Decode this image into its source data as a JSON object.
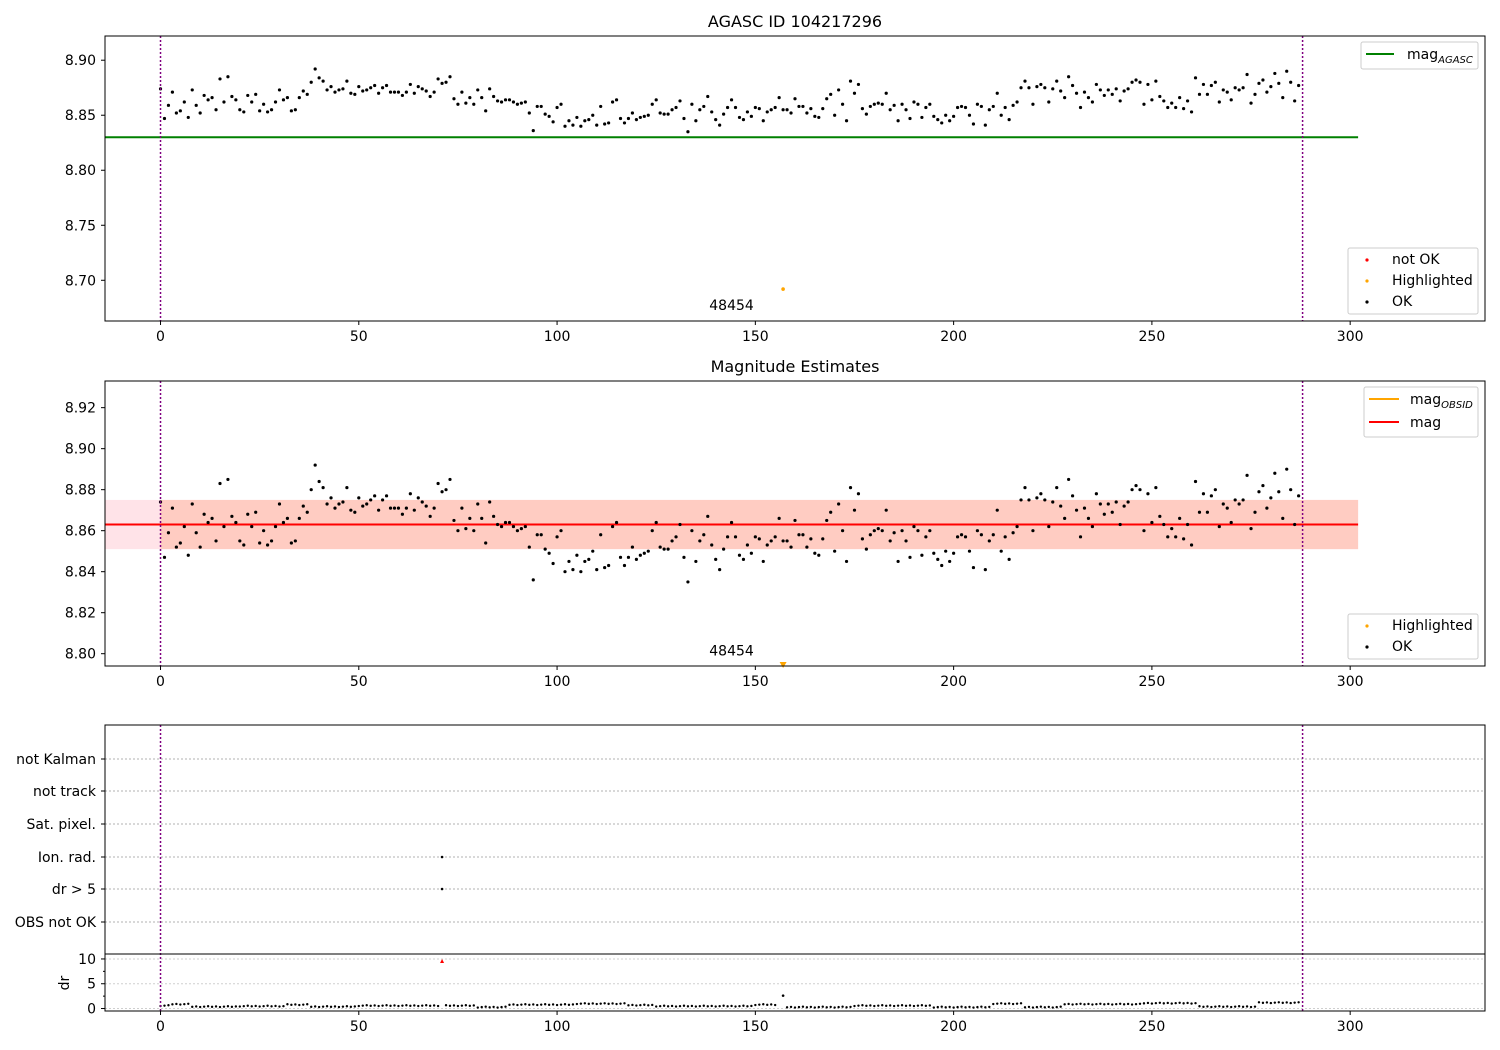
{
  "chart_data": [
    {
      "type": "scatter",
      "title": "AGASC ID 104217296",
      "xlim": [
        -14,
        334
      ],
      "ylim": [
        8.663,
        8.922
      ],
      "yticks": [
        8.7,
        8.75,
        8.8,
        8.85,
        8.9
      ],
      "ytick_labels": [
        "8.70",
        "8.75",
        "8.80",
        "8.85",
        "8.90"
      ],
      "xticks": [
        0,
        50,
        100,
        150,
        200,
        250,
        300
      ],
      "xtick_labels": [
        "0",
        "50",
        "100",
        "150",
        "200",
        "250",
        "300"
      ],
      "grid": false,
      "vlines": [
        0,
        288
      ],
      "hlines": [
        {
          "name": "mag_AGASC",
          "y": 8.83,
          "x0": -14,
          "x1": 302,
          "color": "#008000"
        }
      ],
      "legend_top": {
        "placement": "top-right",
        "entries": [
          {
            "label_main": "mag",
            "label_sub": "AGASC",
            "color": "#008000",
            "kind": "line"
          }
        ]
      },
      "legend_bottom": {
        "placement": "bottom-right",
        "entries": [
          {
            "label": "not OK",
            "color": "#ff0000",
            "kind": "dot"
          },
          {
            "label": "Highlighted",
            "color": "#ffa500",
            "kind": "dot"
          },
          {
            "label": "OK",
            "color": "#000000",
            "kind": "dot"
          }
        ]
      },
      "highlighted_points": [
        {
          "x": 157,
          "y": 8.692
        }
      ],
      "annotations": [
        {
          "text": "48454",
          "x": 144,
          "y": 8.673
        }
      ],
      "series": [
        {
          "name": "OK",
          "color": "#000000",
          "x_start": 0,
          "x_step": 1,
          "values": [
            8.874,
            8.847,
            8.859,
            8.871,
            8.852,
            8.854,
            8.862,
            8.848,
            8.873,
            8.859,
            8.852,
            8.868,
            8.864,
            8.866,
            8.855,
            8.883,
            8.862,
            8.885,
            8.867,
            8.864,
            8.855,
            8.853,
            8.868,
            8.862,
            8.869,
            8.854,
            8.86,
            8.853,
            8.855,
            8.862,
            8.873,
            8.864,
            8.866,
            8.854,
            8.855,
            8.866,
            8.872,
            8.869,
            8.88,
            8.892,
            8.884,
            8.881,
            8.873,
            8.876,
            8.871,
            8.873,
            8.874,
            8.881,
            8.87,
            8.869,
            8.876,
            8.872,
            8.873,
            8.875,
            8.877,
            8.87,
            8.875,
            8.877,
            8.871,
            8.871,
            8.871,
            8.868,
            8.871,
            8.878,
            8.87,
            8.876,
            8.874,
            8.872,
            8.867,
            8.871,
            8.883,
            8.879,
            8.88,
            8.885,
            8.865,
            8.86,
            8.871,
            8.861,
            8.866,
            8.86,
            8.873,
            8.866,
            8.854,
            8.874,
            8.867,
            8.863,
            8.862,
            8.864,
            8.864,
            8.862,
            8.86,
            8.861,
            8.862,
            8.852,
            8.836,
            8.858,
            8.858,
            8.851,
            8.849,
            8.844,
            8.857,
            8.86,
            8.84,
            8.845,
            8.841,
            8.848,
            8.84,
            8.845,
            8.846,
            8.85,
            8.841,
            8.858,
            8.842,
            8.843,
            8.862,
            8.864,
            8.847,
            8.843,
            8.847,
            8.852,
            8.846,
            8.848,
            8.849,
            8.85,
            8.86,
            8.864,
            8.852,
            8.851,
            8.851,
            8.855,
            8.857,
            8.863,
            8.847,
            8.835,
            8.86,
            8.845,
            8.855,
            8.858,
            8.867,
            8.853,
            8.846,
            8.841,
            8.851,
            8.857,
            8.864,
            8.857,
            8.848,
            8.846,
            8.853,
            8.849,
            8.857,
            8.856,
            8.845,
            8.853,
            8.855,
            8.857,
            8.866,
            8.855,
            8.855,
            8.852,
            8.865,
            8.858,
            8.858,
            8.852,
            8.856,
            8.849,
            8.848,
            8.856,
            8.865,
            8.869,
            8.85,
            8.873,
            8.86,
            8.845,
            8.881,
            8.87,
            8.878,
            8.856,
            8.851,
            8.858,
            8.86,
            8.861,
            8.86,
            8.87,
            8.855,
            8.859,
            8.845,
            8.86,
            8.855,
            8.847,
            8.862,
            8.86,
            8.848,
            8.857,
            8.86,
            8.849,
            8.846,
            8.843,
            8.85,
            8.845,
            8.849,
            8.857,
            8.858,
            8.857,
            8.85,
            8.842,
            8.86,
            8.858,
            8.841,
            8.855,
            8.858,
            8.87,
            8.85,
            8.857,
            8.846,
            8.859,
            8.862,
            8.875,
            8.881,
            8.875,
            8.86,
            8.876,
            8.878,
            8.875,
            8.862,
            8.874,
            8.881,
            8.872,
            8.866,
            8.885,
            8.877,
            8.87,
            8.857,
            8.871,
            8.866,
            8.862,
            8.878,
            8.873,
            8.868,
            8.873,
            8.869,
            8.874,
            8.863,
            8.872,
            8.874,
            8.88,
            8.882,
            8.88,
            8.86,
            8.878,
            8.864,
            8.881,
            8.867,
            8.863,
            8.857,
            8.861,
            8.857,
            8.866,
            8.856,
            8.863,
            8.853,
            8.884,
            8.869,
            8.878,
            8.869,
            8.877,
            8.88,
            8.862,
            8.873,
            8.871,
            8.864,
            8.875,
            8.873,
            8.875,
            8.887,
            8.861,
            8.869,
            8.879,
            8.882,
            8.871,
            8.876,
            8.888,
            8.879,
            8.866,
            8.89,
            8.88,
            8.863,
            8.877
          ]
        }
      ]
    },
    {
      "type": "scatter",
      "title": "Magnitude Estimates",
      "xlim": [
        -14,
        334
      ],
      "ylim": [
        8.794,
        8.933
      ],
      "yticks": [
        8.8,
        8.82,
        8.84,
        8.86,
        8.88,
        8.9,
        8.92
      ],
      "ytick_labels": [
        "8.80",
        "8.82",
        "8.84",
        "8.86",
        "8.88",
        "8.90",
        "8.92"
      ],
      "xticks": [
        0,
        50,
        100,
        150,
        200,
        250,
        300
      ],
      "xtick_labels": [
        "0",
        "50",
        "100",
        "150",
        "200",
        "250",
        "300"
      ],
      "grid": false,
      "vlines": [
        0,
        288
      ],
      "hlines": [
        {
          "name": "mag",
          "y": 8.863,
          "x0": -14,
          "x1": 302,
          "color": "#ff0000"
        }
      ],
      "bands": [
        {
          "name": "mag band",
          "y0": 8.851,
          "y1": 8.875,
          "x0": -14,
          "x1": 302,
          "color": "#ffc0cb"
        },
        {
          "name": "mag_OBSID band",
          "y0": 8.851,
          "y1": 8.875,
          "x0": 0,
          "x1": 302,
          "color": "#ffa07a"
        }
      ],
      "legend_top": {
        "placement": "top-right",
        "entries": [
          {
            "label_main": "mag",
            "label_sub": "OBSID",
            "color": "#ffa500",
            "kind": "line"
          },
          {
            "label_main": "mag",
            "label_sub": "",
            "color": "#ff0000",
            "kind": "line"
          }
        ]
      },
      "legend_bottom": {
        "placement": "bottom-right",
        "entries": [
          {
            "label": "Highlighted",
            "color": "#ffa500",
            "kind": "dot"
          },
          {
            "label": "OK",
            "color": "#000000",
            "kind": "dot"
          }
        ]
      },
      "highlighted_points": [
        {
          "x": 157,
          "y": 8.7945,
          "marker": "triangle-down"
        }
      ],
      "annotations": [
        {
          "text": "48454",
          "x": 144,
          "y": 8.799
        }
      ],
      "series": [
        {
          "name": "OK",
          "color": "#000000",
          "same_values_as_panel": 0
        }
      ]
    },
    {
      "type": "scatter",
      "title": "",
      "xlim": [
        -14,
        334
      ],
      "xticks": [
        0,
        50,
        100,
        150,
        200,
        250,
        300
      ],
      "xtick_labels": [
        "0",
        "50",
        "100",
        "150",
        "200",
        "250",
        "300"
      ],
      "vlines": [
        0,
        288
      ],
      "flag_rows": [
        "not Kalman",
        "not track",
        "Sat. pixel.",
        "Ion. rad.",
        "dr > 5",
        "OBS not OK"
      ],
      "flag_points": [
        {
          "row": "Ion. rad.",
          "x": 71
        },
        {
          "row": "dr > 5",
          "x": 71
        }
      ],
      "dr_ylabel": "dr",
      "dr_ylim": [
        -0.5,
        11
      ],
      "dr_yticks": [
        0,
        5,
        10
      ],
      "dr_ytick_labels": [
        "0",
        "5",
        "10"
      ],
      "dr_minor_yticks": [
        2.5,
        7.5
      ],
      "dr_threshold_line": 5,
      "dr_outliers": [
        {
          "x": 71,
          "y": 9.6,
          "color": "#ff0000"
        },
        {
          "x": 157,
          "y": 2.6,
          "color": "#000000"
        }
      ],
      "dr_levels": [
        {
          "x0": 0,
          "x1": 3,
          "y": 0.5
        },
        {
          "x0": 3,
          "x1": 8,
          "y": 0.8
        },
        {
          "x0": 8,
          "x1": 20,
          "y": 0.3
        },
        {
          "x0": 20,
          "x1": 32,
          "y": 0.4
        },
        {
          "x0": 32,
          "x1": 38,
          "y": 0.7
        },
        {
          "x0": 38,
          "x1": 50,
          "y": 0.3
        },
        {
          "x0": 50,
          "x1": 72,
          "y": 0.5
        },
        {
          "x0": 72,
          "x1": 80,
          "y": 0.5
        },
        {
          "x0": 80,
          "x1": 88,
          "y": 0.2
        },
        {
          "x0": 88,
          "x1": 105,
          "y": 0.7
        },
        {
          "x0": 105,
          "x1": 118,
          "y": 0.9
        },
        {
          "x0": 118,
          "x1": 125,
          "y": 0.6
        },
        {
          "x0": 125,
          "x1": 150,
          "y": 0.4
        },
        {
          "x0": 150,
          "x1": 156,
          "y": 0.7
        },
        {
          "x0": 158,
          "x1": 175,
          "y": 0.2
        },
        {
          "x0": 175,
          "x1": 195,
          "y": 0.5
        },
        {
          "x0": 195,
          "x1": 210,
          "y": 0.2
        },
        {
          "x0": 210,
          "x1": 218,
          "y": 0.9
        },
        {
          "x0": 218,
          "x1": 228,
          "y": 0.2
        },
        {
          "x0": 228,
          "x1": 248,
          "y": 0.8
        },
        {
          "x0": 248,
          "x1": 262,
          "y": 1.0
        },
        {
          "x0": 262,
          "x1": 277,
          "y": 0.3
        },
        {
          "x0": 277,
          "x1": 288,
          "y": 1.1
        }
      ]
    }
  ]
}
